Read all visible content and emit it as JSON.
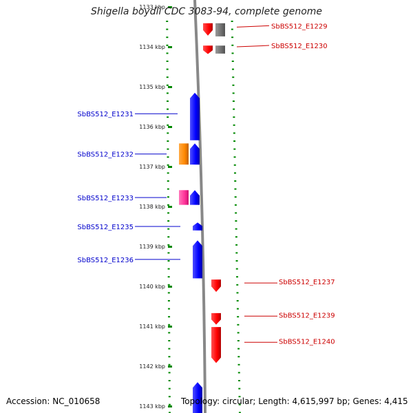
{
  "title": "Shigella boydii CDC 3083-94, complete genome",
  "footer": {
    "accession": "Accession: NC_010658",
    "topology": "Topology: circular; Length: 4,615,997 bp; Genes: 4,415"
  },
  "colors": {
    "forward": "#ff0000",
    "reverse": "#0000ff",
    "grey": "#707070",
    "pink": "#ff3399",
    "orange": "#ff8800",
    "tick": "#008800",
    "backbone": "#888888"
  },
  "scale": {
    "unit": "kbp",
    "ticks": [
      {
        "label": "1133 kbp",
        "kbp": 1133
      },
      {
        "label": "1134 kbp",
        "kbp": 1134
      },
      {
        "label": "1135 kbp",
        "kbp": 1135
      },
      {
        "label": "1136 kbp",
        "kbp": 1136
      },
      {
        "label": "1137 kbp",
        "kbp": 1137
      },
      {
        "label": "1138 kbp",
        "kbp": 1138
      },
      {
        "label": "1139 kbp",
        "kbp": 1139
      },
      {
        "label": "1140 kbp",
        "kbp": 1140
      },
      {
        "label": "1141 kbp",
        "kbp": 1141
      },
      {
        "label": "1142 kbp",
        "kbp": 1142
      },
      {
        "label": "1143 kbp",
        "kbp": 1143
      }
    ]
  },
  "genes": [
    {
      "strand": "+",
      "track": "forward",
      "color": "red",
      "start": 1133.41,
      "end": 1133.72,
      "label": ""
    },
    {
      "strand": "+",
      "track": "forward-other",
      "color": "grey",
      "start": 1133.41,
      "end": 1133.74,
      "label": "SbBS512_E1229"
    },
    {
      "strand": "+",
      "track": "forward",
      "color": "red",
      "start": 1133.97,
      "end": 1134.18,
      "label": ""
    },
    {
      "strand": "+",
      "track": "forward-other",
      "color": "grey",
      "start": 1133.97,
      "end": 1134.17,
      "label": "SbBS512_E1230"
    },
    {
      "strand": "-",
      "track": "reverse",
      "color": "blue",
      "start": 1135.15,
      "end": 1136.34,
      "label": "SbBS512_E1231"
    },
    {
      "strand": "-",
      "track": "reverse-other",
      "color": "orange",
      "start": 1136.42,
      "end": 1136.95,
      "label": "SbBS512_E1232"
    },
    {
      "strand": "-",
      "track": "reverse",
      "color": "blue",
      "start": 1136.42,
      "end": 1136.95,
      "label": ""
    },
    {
      "strand": "-",
      "track": "reverse-other",
      "color": "pink",
      "start": 1137.59,
      "end": 1137.96,
      "label": "SbBS512_E1233"
    },
    {
      "strand": "-",
      "track": "reverse",
      "color": "blue",
      "start": 1137.59,
      "end": 1137.96,
      "label": ""
    },
    {
      "strand": "-",
      "track": "reverse",
      "color": "blue",
      "start": 1138.4,
      "end": 1138.6,
      "label": "SbBS512_E1235"
    },
    {
      "strand": "-",
      "track": "reverse",
      "color": "blue",
      "start": 1138.85,
      "end": 1139.8,
      "label": "SbBS512_E1236"
    },
    {
      "strand": "+",
      "track": "forward",
      "color": "red",
      "start": 1139.83,
      "end": 1140.14,
      "label": "SbBS512_E1237"
    },
    {
      "strand": "+",
      "track": "forward",
      "color": "red",
      "start": 1140.67,
      "end": 1140.96,
      "label": "SbBS512_E1239"
    },
    {
      "strand": "+",
      "track": "forward",
      "color": "red",
      "start": 1141.02,
      "end": 1141.92,
      "label": "SbBS512_E1240"
    },
    {
      "strand": "-",
      "track": "reverse",
      "color": "blue",
      "start": 1142.4,
      "end": 1143.2,
      "label": ""
    }
  ]
}
